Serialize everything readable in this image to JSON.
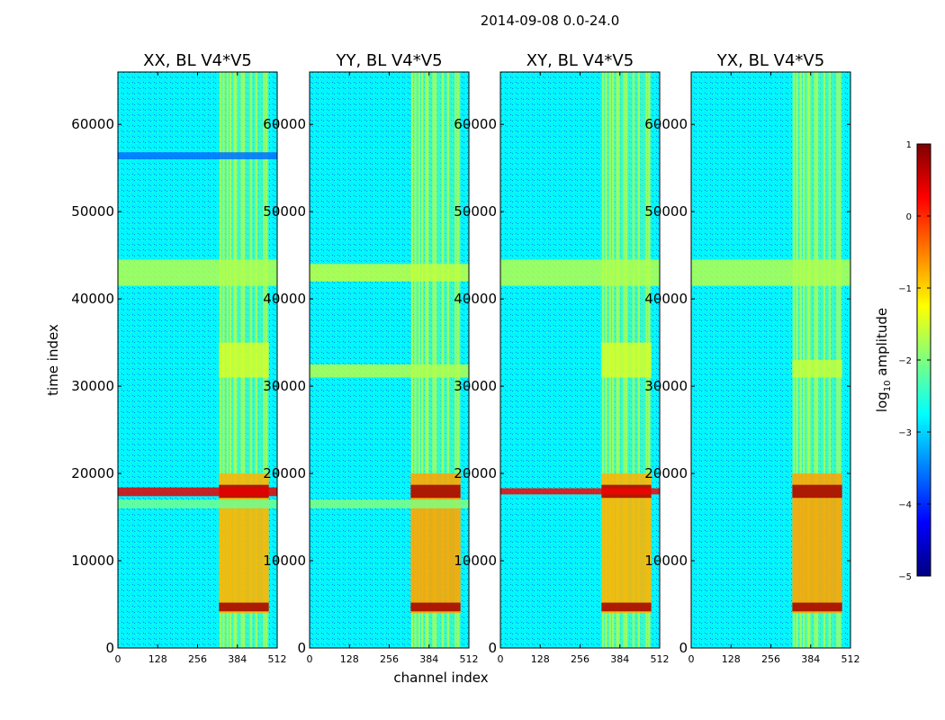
{
  "figure": {
    "suptitle": "2014-09-08 0.0-24.0",
    "xlabel": "channel index",
    "ylabel": "time index"
  },
  "colorbar": {
    "label_prefix": "log",
    "label_sub": "10",
    "label_suffix": " amplitude",
    "range": [
      -5,
      1
    ],
    "ticks": [
      {
        "value": 1,
        "label": "1"
      },
      {
        "value": 0,
        "label": "0"
      },
      {
        "value": -1,
        "label": "−1"
      },
      {
        "value": -2,
        "label": "−2"
      },
      {
        "value": -3,
        "label": "−3"
      },
      {
        "value": -4,
        "label": "−4"
      },
      {
        "value": -5,
        "label": "−5"
      }
    ],
    "colormap": [
      "#00007f",
      "#0000ff",
      "#007fff",
      "#00ffff",
      "#7fff7f",
      "#ffff00",
      "#ff7f00",
      "#ff0000",
      "#7f0000"
    ]
  },
  "chart_data": [
    {
      "type": "heatmap",
      "title": "XX, BL V4*V5",
      "xlim": [
        0,
        512
      ],
      "ylim": [
        0,
        66000
      ],
      "xticks": [
        0,
        128,
        256,
        384,
        512
      ],
      "yticks": [
        0,
        10000,
        20000,
        30000,
        40000,
        50000,
        60000
      ],
      "baseline_log_amplitude": -2.8,
      "rfi_channel_band": [
        325,
        485
      ],
      "rfi_channel_columns": [
        330,
        340,
        352,
        362,
        375,
        380,
        398,
        405,
        428,
        445,
        470,
        478
      ],
      "rfi_time_bands": [
        {
          "t_start": 41500,
          "t_end": 44500,
          "channels": "all",
          "log_amplitude": -1.7
        },
        {
          "t_start": 31000,
          "t_end": 35000,
          "channels": "rfi",
          "log_amplitude": -1.5
        },
        {
          "t_start": 4000,
          "t_end": 20000,
          "channels": "rfi",
          "log_amplitude": -0.8
        },
        {
          "t_start": 17200,
          "t_end": 18700,
          "channels": "rfi",
          "log_amplitude": 0.8
        },
        {
          "t_start": 4200,
          "t_end": 5200,
          "channels": "rfi",
          "log_amplitude": 0.8
        },
        {
          "t_start": 17400,
          "t_end": 18400,
          "channels": "all",
          "log_amplitude": 0.4
        },
        {
          "t_start": 16000,
          "t_end": 17000,
          "channels": "all",
          "log_amplitude": -2.1
        },
        {
          "t_start": 56000,
          "t_end": 56800,
          "channels": "all",
          "log_amplitude": -3.6
        }
      ]
    },
    {
      "type": "heatmap",
      "title": "YY, BL V4*V5",
      "xlim": [
        0,
        512
      ],
      "ylim": [
        0,
        66000
      ],
      "xticks": [
        0,
        128,
        256,
        384,
        512
      ],
      "yticks": [
        0,
        10000,
        20000,
        30000,
        40000,
        50000,
        60000
      ],
      "baseline_log_amplitude": -2.8,
      "rfi_channel_band": [
        325,
        485
      ],
      "rfi_channel_columns": [
        330,
        340,
        352,
        362,
        375,
        380,
        398,
        405,
        428,
        445,
        470,
        478
      ],
      "rfi_time_bands": [
        {
          "t_start": 42000,
          "t_end": 44000,
          "channels": "all",
          "log_amplitude": -1.6
        },
        {
          "t_start": 31000,
          "t_end": 32500,
          "channels": "all",
          "log_amplitude": -1.7
        },
        {
          "t_start": 4000,
          "t_end": 20000,
          "channels": "rfi",
          "log_amplitude": -0.7
        },
        {
          "t_start": 17200,
          "t_end": 18700,
          "channels": "rfi",
          "log_amplitude": 0.8
        },
        {
          "t_start": 4200,
          "t_end": 5200,
          "channels": "rfi",
          "log_amplitude": 0.8
        },
        {
          "t_start": 16000,
          "t_end": 17000,
          "channels": "all",
          "log_amplitude": -2.0
        }
      ]
    },
    {
      "type": "heatmap",
      "title": "XY, BL V4*V5",
      "xlim": [
        0,
        512
      ],
      "ylim": [
        0,
        66000
      ],
      "xticks": [
        0,
        128,
        256,
        384,
        512
      ],
      "yticks": [
        0,
        10000,
        20000,
        30000,
        40000,
        50000,
        60000
      ],
      "baseline_log_amplitude": -2.8,
      "rfi_channel_band": [
        325,
        485
      ],
      "rfi_channel_columns": [
        330,
        340,
        352,
        362,
        375,
        380,
        398,
        405,
        428,
        445,
        470,
        478
      ],
      "rfi_time_bands": [
        {
          "t_start": 41500,
          "t_end": 44500,
          "channels": "all",
          "log_amplitude": -1.7
        },
        {
          "t_start": 31000,
          "t_end": 35000,
          "channels": "rfi",
          "log_amplitude": -1.5
        },
        {
          "t_start": 4000,
          "t_end": 20000,
          "channels": "rfi",
          "log_amplitude": -0.8
        },
        {
          "t_start": 17200,
          "t_end": 18700,
          "channels": "rfi",
          "log_amplitude": 0.8
        },
        {
          "t_start": 4200,
          "t_end": 5200,
          "channels": "rfi",
          "log_amplitude": 0.8
        },
        {
          "t_start": 17600,
          "t_end": 18300,
          "channels": "all",
          "log_amplitude": 0.3
        }
      ]
    },
    {
      "type": "heatmap",
      "title": "YX, BL V4*V5",
      "xlim": [
        0,
        512
      ],
      "ylim": [
        0,
        66000
      ],
      "xticks": [
        0,
        128,
        256,
        384,
        512
      ],
      "yticks": [
        0,
        10000,
        20000,
        30000,
        40000,
        50000,
        60000
      ],
      "baseline_log_amplitude": -2.8,
      "rfi_channel_band": [
        325,
        485
      ],
      "rfi_channel_columns": [
        330,
        340,
        352,
        362,
        375,
        380,
        398,
        405,
        428,
        445,
        470,
        478
      ],
      "rfi_time_bands": [
        {
          "t_start": 41500,
          "t_end": 44500,
          "channels": "all",
          "log_amplitude": -1.7
        },
        {
          "t_start": 31000,
          "t_end": 33000,
          "channels": "rfi",
          "log_amplitude": -1.6
        },
        {
          "t_start": 4000,
          "t_end": 20000,
          "channels": "rfi",
          "log_amplitude": -0.7
        },
        {
          "t_start": 17200,
          "t_end": 18700,
          "channels": "rfi",
          "log_amplitude": 0.8
        },
        {
          "t_start": 4200,
          "t_end": 5200,
          "channels": "rfi",
          "log_amplitude": 0.8
        }
      ]
    }
  ]
}
